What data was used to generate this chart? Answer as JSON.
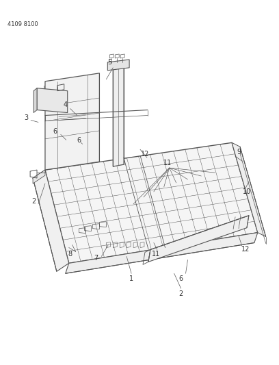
{
  "part_number": "4109 8100",
  "bg_color": "#ffffff",
  "line_color": "#555555",
  "label_color": "#333333",
  "label_fontsize": 7.0,
  "part_number_fontsize": 6.0,
  "figsize": [
    4.08,
    5.33
  ],
  "dpi": 100
}
